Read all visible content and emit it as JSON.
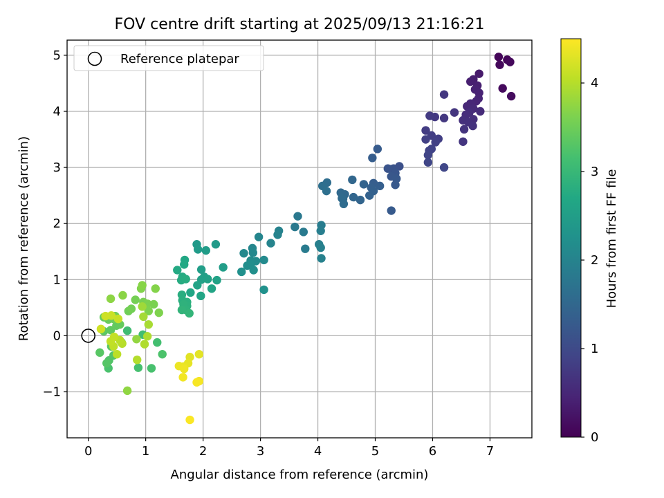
{
  "chart_data": {
    "type": "scatter",
    "title": "FOV centre drift starting at 2025/09/13 21:16:21",
    "xlabel": "Angular distance from reference (arcmin)",
    "ylabel": "Rotation from reference (arcmin)",
    "xlim": [
      -0.37,
      7.73
    ],
    "ylim": [
      -1.82,
      5.27
    ],
    "xticks": [
      0,
      1,
      2,
      3,
      4,
      5,
      6,
      7
    ],
    "yticks": [
      -1,
      0,
      1,
      2,
      3,
      4,
      5
    ],
    "grid": true,
    "legend": {
      "position": "top-left",
      "entries": [
        "Reference platepar"
      ]
    },
    "reference_point": {
      "x": 0,
      "y": 0
    },
    "colorbar": {
      "label": "Hours from first FF file",
      "range": [
        0,
        4.5
      ],
      "ticks": [
        0,
        1,
        2,
        3,
        4
      ],
      "colormap": "viridis"
    },
    "points": [
      [
        7.15,
        4.97,
        0.05
      ],
      [
        7.3,
        4.92,
        0.07
      ],
      [
        7.35,
        4.88,
        0.09
      ],
      [
        7.17,
        4.83,
        0.1
      ],
      [
        7.22,
        4.41,
        0.12
      ],
      [
        7.37,
        4.27,
        0.14
      ],
      [
        6.81,
        4.67,
        0.32
      ],
      [
        6.71,
        4.57,
        0.36
      ],
      [
        6.66,
        4.53,
        0.38
      ],
      [
        6.78,
        4.46,
        0.4
      ],
      [
        6.74,
        4.39,
        0.42
      ],
      [
        6.81,
        4.33,
        0.43
      ],
      [
        6.8,
        4.23,
        0.45
      ],
      [
        6.76,
        4.18,
        0.47
      ],
      [
        6.66,
        4.14,
        0.49
      ],
      [
        6.6,
        4.09,
        0.51
      ],
      [
        6.71,
        4.05,
        0.53
      ],
      [
        6.83,
        4.0,
        0.55
      ],
      [
        6.64,
        3.98,
        0.57
      ],
      [
        6.58,
        3.94,
        0.59
      ],
      [
        6.71,
        3.86,
        0.61
      ],
      [
        6.53,
        3.84,
        0.62
      ],
      [
        6.62,
        3.81,
        0.63
      ],
      [
        6.7,
        3.74,
        0.65
      ],
      [
        6.55,
        3.68,
        0.67
      ],
      [
        6.53,
        3.46,
        0.69
      ],
      [
        6.38,
        3.98,
        0.7
      ],
      [
        6.2,
        4.3,
        0.72
      ],
      [
        6.2,
        3.88,
        0.73
      ],
      [
        6.04,
        3.9,
        0.75
      ],
      [
        5.95,
        3.92,
        0.77
      ],
      [
        5.88,
        3.66,
        0.79
      ],
      [
        5.98,
        3.57,
        0.81
      ],
      [
        6.1,
        3.51,
        0.82
      ],
      [
        5.88,
        3.5,
        0.84
      ],
      [
        6.05,
        3.45,
        0.86
      ],
      [
        5.94,
        3.3,
        0.88
      ],
      [
        5.98,
        3.33,
        0.89
      ],
      [
        5.92,
        3.22,
        0.91
      ],
      [
        5.92,
        3.09,
        0.93
      ],
      [
        6.2,
        3.0,
        0.95
      ],
      [
        5.42,
        3.02,
        1.1
      ],
      [
        5.32,
        2.98,
        1.13
      ],
      [
        5.28,
        2.97,
        1.15
      ],
      [
        5.22,
        2.98,
        1.17
      ],
      [
        5.35,
        2.9,
        1.19
      ],
      [
        5.28,
        2.84,
        1.21
      ],
      [
        5.37,
        2.8,
        1.23
      ],
      [
        5.35,
        2.69,
        1.25
      ],
      [
        5.28,
        2.23,
        1.27
      ],
      [
        5.04,
        3.33,
        1.29
      ],
      [
        4.95,
        3.17,
        1.31
      ],
      [
        4.97,
        2.72,
        1.33
      ],
      [
        5.08,
        2.67,
        1.35
      ],
      [
        4.93,
        2.64,
        1.37
      ],
      [
        4.97,
        2.58,
        1.39
      ],
      [
        4.9,
        2.5,
        1.41
      ],
      [
        4.8,
        2.7,
        1.43
      ],
      [
        4.74,
        2.42,
        1.45
      ],
      [
        4.62,
        2.47,
        1.47
      ],
      [
        4.6,
        2.78,
        1.49
      ],
      [
        4.47,
        2.52,
        1.51
      ],
      [
        4.4,
        2.55,
        1.53
      ],
      [
        4.44,
        2.44,
        1.55
      ],
      [
        4.42,
        2.45,
        1.57
      ],
      [
        4.45,
        2.35,
        1.59
      ],
      [
        4.16,
        2.73,
        1.61
      ],
      [
        4.08,
        2.67,
        1.63
      ],
      [
        4.15,
        2.58,
        1.65
      ],
      [
        3.65,
        2.13,
        1.8
      ],
      [
        3.6,
        1.94,
        1.82
      ],
      [
        3.75,
        1.85,
        1.84
      ],
      [
        3.78,
        1.55,
        1.86
      ],
      [
        4.06,
        1.97,
        1.88
      ],
      [
        4.05,
        1.87,
        1.9
      ],
      [
        4.02,
        1.63,
        1.92
      ],
      [
        4.05,
        1.57,
        1.94
      ],
      [
        4.06,
        1.38,
        1.96
      ],
      [
        3.32,
        1.87,
        1.98
      ],
      [
        3.3,
        1.8,
        2.0
      ],
      [
        3.18,
        1.65,
        2.02
      ],
      [
        2.97,
        1.76,
        2.04
      ],
      [
        2.86,
        1.56,
        2.06
      ],
      [
        2.87,
        1.48,
        2.08
      ],
      [
        2.71,
        1.47,
        2.1
      ],
      [
        3.06,
        1.35,
        2.12
      ],
      [
        2.92,
        1.33,
        2.14
      ],
      [
        2.83,
        1.34,
        2.16
      ],
      [
        2.77,
        1.25,
        2.18
      ],
      [
        2.83,
        1.27,
        2.2
      ],
      [
        2.88,
        1.17,
        2.21
      ],
      [
        2.67,
        1.14,
        2.23
      ],
      [
        3.06,
        0.82,
        2.25
      ],
      [
        1.89,
        1.63,
        2.4
      ],
      [
        2.22,
        1.63,
        2.42
      ],
      [
        1.91,
        1.54,
        2.44
      ],
      [
        2.05,
        1.52,
        2.46
      ],
      [
        2.35,
        1.22,
        2.48
      ],
      [
        1.97,
        1.18,
        2.5
      ],
      [
        2.02,
        1.05,
        2.52
      ],
      [
        1.97,
        1.0,
        2.54
      ],
      [
        2.08,
        1.01,
        2.56
      ],
      [
        2.24,
        0.99,
        2.58
      ],
      [
        1.9,
        0.9,
        2.6
      ],
      [
        2.15,
        0.84,
        2.62
      ],
      [
        1.96,
        0.71,
        2.64
      ],
      [
        1.78,
        0.77,
        2.66
      ],
      [
        1.68,
        1.35,
        2.68
      ],
      [
        1.67,
        1.27,
        2.7
      ],
      [
        1.55,
        1.17,
        2.72
      ],
      [
        1.64,
        1.05,
        2.74
      ],
      [
        1.62,
        0.99,
        2.76
      ],
      [
        1.7,
        1.01,
        2.78
      ],
      [
        1.63,
        0.73,
        2.8
      ],
      [
        1.64,
        0.63,
        2.82
      ],
      [
        1.72,
        0.6,
        2.84
      ],
      [
        1.72,
        0.53,
        2.86
      ],
      [
        1.66,
        0.56,
        2.88
      ],
      [
        1.7,
        0.46,
        2.9
      ],
      [
        1.63,
        0.46,
        2.92
      ],
      [
        1.76,
        0.4,
        2.94
      ],
      [
        0.68,
        0.09,
        3.1
      ],
      [
        0.95,
        0.02,
        3.12
      ],
      [
        1.2,
        -0.12,
        3.14
      ],
      [
        0.87,
        -0.57,
        3.16
      ],
      [
        1.1,
        -0.58,
        3.18
      ],
      [
        0.35,
        -0.58,
        3.2
      ],
      [
        1.29,
        -0.33,
        3.22
      ],
      [
        0.58,
        -0.12,
        3.24
      ],
      [
        0.36,
        -0.44,
        3.26
      ],
      [
        0.44,
        -0.35,
        3.28
      ],
      [
        0.32,
        -0.49,
        3.3
      ],
      [
        0.2,
        -0.3,
        3.32
      ],
      [
        0.4,
        -0.19,
        3.34
      ],
      [
        0.27,
        0.08,
        3.36
      ],
      [
        0.39,
        0.1,
        3.38
      ],
      [
        0.49,
        0.18,
        3.4
      ],
      [
        0.55,
        0.2,
        3.42
      ],
      [
        0.27,
        0.33,
        3.44
      ],
      [
        0.35,
        0.29,
        3.46
      ],
      [
        0.44,
        0.3,
        3.48
      ],
      [
        0.47,
        0.35,
        3.5
      ],
      [
        0.7,
        0.44,
        3.52
      ],
      [
        0.75,
        0.48,
        3.54
      ],
      [
        0.82,
        0.64,
        3.56
      ],
      [
        0.96,
        0.6,
        3.58
      ],
      [
        1.14,
        0.56,
        3.6
      ],
      [
        1.03,
        0.57,
        3.61
      ],
      [
        1.05,
        0.44,
        3.62
      ],
      [
        1.23,
        0.41,
        3.63
      ],
      [
        0.92,
        0.84,
        3.65
      ],
      [
        1.17,
        0.84,
        3.67
      ],
      [
        0.94,
        0.9,
        3.69
      ],
      [
        0.6,
        0.72,
        3.71
      ],
      [
        0.39,
        0.66,
        3.73
      ],
      [
        0.68,
        -0.98,
        3.75
      ],
      [
        0.84,
        -0.06,
        3.77
      ],
      [
        0.94,
        0.52,
        3.85
      ],
      [
        0.96,
        0.34,
        3.88
      ],
      [
        1.05,
        0.2,
        3.91
      ],
      [
        1.03,
        -0.01,
        3.94
      ],
      [
        0.98,
        -0.15,
        3.96
      ],
      [
        0.85,
        -0.43,
        3.98
      ],
      [
        0.59,
        -0.14,
        4.0
      ],
      [
        0.55,
        -0.08,
        4.02
      ],
      [
        0.5,
        -0.33,
        4.04
      ],
      [
        0.44,
        -0.19,
        4.06
      ],
      [
        0.39,
        -0.1,
        4.08
      ],
      [
        0.45,
        -0.02,
        4.1
      ],
      [
        0.52,
        0.3,
        4.12
      ],
      [
        0.4,
        0.36,
        4.14
      ],
      [
        0.3,
        0.35,
        4.16
      ],
      [
        0.22,
        0.12,
        4.18
      ],
      [
        1.77,
        -0.38,
        4.3
      ],
      [
        1.93,
        -0.33,
        4.32
      ],
      [
        1.74,
        -0.49,
        4.34
      ],
      [
        1.66,
        -0.55,
        4.36
      ],
      [
        1.58,
        -0.54,
        4.38
      ],
      [
        1.67,
        -0.59,
        4.4
      ],
      [
        1.65,
        -0.74,
        4.42
      ],
      [
        1.93,
        -0.81,
        4.44
      ],
      [
        1.89,
        -0.83,
        4.46
      ],
      [
        1.77,
        -1.5,
        4.48
      ]
    ]
  }
}
